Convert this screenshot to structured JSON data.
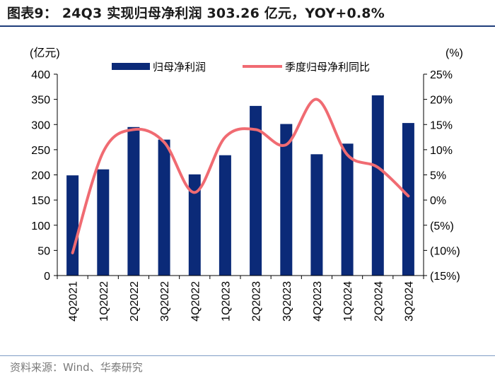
{
  "header": {
    "title": "图表9： 24Q3 实现归母净利润 303.26 亿元，YOY+0.8%"
  },
  "footer": {
    "source": "资料来源：Wind、华泰研究"
  },
  "colors": {
    "bar": "#0b2a78",
    "line": "#f06b72",
    "axis": "#000000",
    "rule": "#1f3d7a"
  },
  "chart_data": {
    "type": "bar",
    "title": "24Q3 实现归母净利润 303.26 亿元，YOY+0.8%",
    "categories": [
      "4Q2021",
      "1Q2022",
      "2Q2022",
      "3Q2022",
      "4Q2022",
      "1Q2023",
      "2Q2023",
      "3Q2023",
      "4Q2023",
      "1Q2024",
      "2Q2024",
      "3Q2024"
    ],
    "series": [
      {
        "name": "归母净利润",
        "type": "bar",
        "axis": "left",
        "values": [
          199,
          211,
          295,
          270,
          201,
          239,
          337,
          301,
          241,
          262,
          358,
          303
        ]
      },
      {
        "name": "季度归母净利同比",
        "type": "line",
        "axis": "right",
        "unit": "%",
        "values": [
          -10.5,
          9.5,
          14.0,
          11.5,
          1.5,
          12.5,
          14.0,
          11.0,
          20.0,
          9.0,
          6.5,
          0.8
        ]
      }
    ],
    "y_left": {
      "label": "(亿元)",
      "min": 0,
      "max": 400,
      "ticks": [
        0,
        50,
        100,
        150,
        200,
        250,
        300,
        350,
        400
      ],
      "tick_labels": [
        "0",
        "50",
        "100",
        "150",
        "200",
        "250",
        "300",
        "350",
        "400"
      ]
    },
    "y_right": {
      "label": "(%)",
      "min": -15,
      "max": 25,
      "ticks": [
        -15,
        -10,
        -5,
        0,
        5,
        10,
        15,
        20,
        25
      ],
      "tick_labels": [
        "(15%)",
        "(10%)",
        "(5%)",
        "0%",
        "5%",
        "10%",
        "15%",
        "20%",
        "25%"
      ]
    },
    "legend": [
      "归母净利润",
      "季度归母净利同比"
    ],
    "legend_position": "top-center",
    "grid": false
  }
}
